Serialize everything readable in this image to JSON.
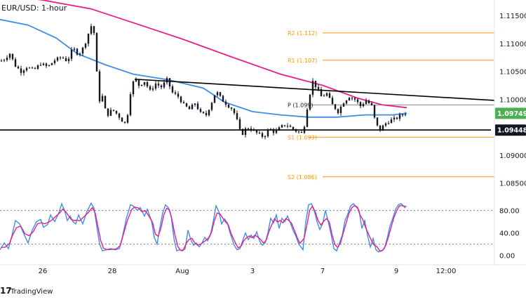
{
  "chart_data": {
    "type": "candlestick",
    "title": "EUR/USD: 1-hour",
    "x_ticks": [
      "26",
      "28",
      "Aug",
      "3",
      "7",
      "9",
      "12:00"
    ],
    "y_ticks": [
      "1.11500",
      "1.11000",
      "1.10500",
      "1.10000",
      "1.09000",
      "1.08500"
    ],
    "ylim": [
      1.0828,
      1.1178
    ],
    "price_path": [
      [
        0,
        1.1068
      ],
      [
        6,
        1.1072
      ],
      [
        14,
        1.1082
      ],
      [
        22,
        1.106
      ],
      [
        30,
        1.105
      ],
      [
        38,
        1.1058
      ],
      [
        48,
        1.1052
      ],
      [
        58,
        1.1064
      ],
      [
        68,
        1.1058
      ],
      [
        78,
        1.107
      ],
      [
        88,
        1.1076
      ],
      [
        96,
        1.1068
      ],
      [
        104,
        1.1092
      ],
      [
        112,
        1.108
      ],
      [
        120,
        1.1095
      ],
      [
        126,
        1.1118
      ],
      [
        132,
        1.1138
      ],
      [
        136,
        1.11
      ],
      [
        140,
        1.0995
      ],
      [
        146,
        1.1005
      ],
      [
        152,
        1.097
      ],
      [
        160,
        1.0982
      ],
      [
        168,
        1.0972
      ],
      [
        174,
        1.0962
      ],
      [
        180,
        1.0955
      ],
      [
        186,
        1.1012
      ],
      [
        192,
        1.104
      ],
      [
        198,
        1.1025
      ],
      [
        206,
        1.1032
      ],
      [
        214,
        1.1015
      ],
      [
        222,
        1.1028
      ],
      [
        230,
        1.1022
      ],
      [
        238,
        1.1035
      ],
      [
        246,
        1.1012
      ],
      [
        254,
        1.1005
      ],
      [
        262,
        1.099
      ],
      [
        270,
        1.0982
      ],
      [
        278,
        1.0993
      ],
      [
        286,
        1.0975
      ],
      [
        294,
        1.0972
      ],
      [
        302,
        1.0995
      ],
      [
        308,
        1.1015
      ],
      [
        316,
        1.1
      ],
      [
        324,
        1.099
      ],
      [
        332,
        1.0982
      ],
      [
        338,
        1.0962
      ],
      [
        344,
        1.0935
      ],
      [
        352,
        1.095
      ],
      [
        360,
        1.0945
      ],
      [
        368,
        1.0938
      ],
      [
        376,
        1.0932
      ],
      [
        384,
        1.0948
      ],
      [
        392,
        1.094
      ],
      [
        400,
        1.095
      ],
      [
        408,
        1.0955
      ],
      [
        416,
        1.0948
      ],
      [
        424,
        1.0942
      ],
      [
        432,
        1.0938
      ],
      [
        440,
        1.1
      ],
      [
        446,
        1.1032
      ],
      [
        452,
        1.102
      ],
      [
        458,
        1.1005
      ],
      [
        466,
        1.101
      ],
      [
        474,
        1.099
      ],
      [
        482,
        1.0978
      ],
      [
        490,
        1.0995
      ],
      [
        498,
        1.1005
      ],
      [
        506,
        1.1
      ],
      [
        514,
        1.0988
      ],
      [
        522,
        1.0998
      ],
      [
        530,
        1.0988
      ],
      [
        536,
        1.0955
      ],
      [
        542,
        1.0945
      ],
      [
        548,
        1.0955
      ],
      [
        556,
        1.0962
      ],
      [
        564,
        1.0965
      ],
      [
        572,
        1.0972
      ],
      [
        578,
        1.0975
      ]
    ],
    "moving_averages": [
      {
        "color": "#e91e8c",
        "points": [
          [
            0,
            1.1188
          ],
          [
            60,
            1.1178
          ],
          [
            130,
            1.1162
          ],
          [
            200,
            1.1133
          ],
          [
            260,
            1.1108
          ],
          [
            330,
            1.1076
          ],
          [
            400,
            1.1045
          ],
          [
            460,
            1.1025
          ],
          [
            510,
            1.1002
          ],
          [
            545,
            1.099
          ],
          [
            580,
            1.0985
          ]
        ]
      },
      {
        "color": "#3d8ee6",
        "points": [
          [
            0,
            1.1143
          ],
          [
            40,
            1.1133
          ],
          [
            80,
            1.111
          ],
          [
            110,
            1.1082
          ],
          [
            150,
            1.1062
          ],
          [
            190,
            1.1045
          ],
          [
            240,
            1.1035
          ],
          [
            290,
            1.102
          ],
          [
            320,
            1.0995
          ],
          [
            360,
            1.0978
          ],
          [
            400,
            1.0972
          ],
          [
            440,
            1.0968
          ],
          [
            480,
            1.0968
          ],
          [
            520,
            1.0972
          ],
          [
            560,
            1.0972
          ],
          [
            580,
            1.0975
          ]
        ]
      }
    ],
    "trendlines": [
      {
        "name": "descending-resistance",
        "points": [
          [
            192,
            1.1036
          ],
          [
            705,
            1.0998
          ]
        ],
        "color": "#000000"
      },
      {
        "name": "support",
        "points": [
          [
            0,
            1.0945
          ],
          [
            700,
            1.0945
          ]
        ],
        "color": "#000000"
      }
    ],
    "pivots": [
      {
        "label": "R2 (1.112)",
        "value": 1.1119,
        "start_x": 460,
        "color": "#ff9800"
      },
      {
        "label": "R1 (1.107)",
        "value": 1.107,
        "start_x": 460,
        "color": "#ff9800"
      },
      {
        "label": "P (1.099)",
        "value": 1.099,
        "start_x": 440,
        "color": "#131722"
      },
      {
        "label": "S1 (1.093)",
        "value": 1.0932,
        "start_x": 440,
        "color": "#ff9800"
      },
      {
        "label": "S2 (1.086)",
        "value": 1.0861,
        "start_x": 460,
        "color": "#ff9800"
      }
    ],
    "price_badges": [
      {
        "label": "1.09749",
        "value": 1.09749,
        "color": "#4caf50"
      },
      {
        "label": "1.09448",
        "value": 1.09448,
        "color": "#131722"
      }
    ],
    "oscillator": {
      "ylim": [
        -8,
        102
      ],
      "y_ticks": [
        "80.00",
        "40.00",
        "0.00"
      ],
      "levels": [
        80,
        20
      ],
      "k_color": "#3d8ee6",
      "d_color": "#e91e8c",
      "points": [
        [
          0,
          10
        ],
        [
          6,
          22
        ],
        [
          12,
          12
        ],
        [
          16,
          30
        ],
        [
          22,
          62
        ],
        [
          28,
          56
        ],
        [
          34,
          38
        ],
        [
          40,
          22
        ],
        [
          46,
          45
        ],
        [
          52,
          60
        ],
        [
          58,
          64
        ],
        [
          62,
          50
        ],
        [
          68,
          55
        ],
        [
          72,
          72
        ],
        [
          78,
          60
        ],
        [
          84,
          76
        ],
        [
          88,
          92
        ],
        [
          92,
          80
        ],
        [
          96,
          62
        ],
        [
          100,
          70
        ],
        [
          104,
          60
        ],
        [
          108,
          56
        ],
        [
          112,
          72
        ],
        [
          118,
          56
        ],
        [
          124,
          78
        ],
        [
          130,
          93
        ],
        [
          134,
          84
        ],
        [
          138,
          52
        ],
        [
          142,
          20
        ],
        [
          146,
          8
        ],
        [
          152,
          10
        ],
        [
          158,
          12
        ],
        [
          164,
          10
        ],
        [
          170,
          12
        ],
        [
          174,
          30
        ],
        [
          180,
          65
        ],
        [
          186,
          90
        ],
        [
          190,
          88
        ],
        [
          196,
          80
        ],
        [
          200,
          85
        ],
        [
          206,
          70
        ],
        [
          210,
          82
        ],
        [
          216,
          62
        ],
        [
          220,
          32
        ],
        [
          224,
          20
        ],
        [
          228,
          50
        ],
        [
          232,
          76
        ],
        [
          236,
          90
        ],
        [
          240,
          85
        ],
        [
          244,
          70
        ],
        [
          248,
          30
        ],
        [
          252,
          8
        ],
        [
          256,
          10
        ],
        [
          260,
          8
        ],
        [
          264,
          12
        ],
        [
          268,
          45
        ],
        [
          272,
          28
        ],
        [
          276,
          18
        ],
        [
          280,
          22
        ],
        [
          284,
          15
        ],
        [
          288,
          22
        ],
        [
          292,
          32
        ],
        [
          296,
          26
        ],
        [
          300,
          36
        ],
        [
          304,
          60
        ],
        [
          308,
          88
        ],
        [
          312,
          78
        ],
        [
          316,
          56
        ],
        [
          320,
          65
        ],
        [
          324,
          58
        ],
        [
          328,
          40
        ],
        [
          334,
          18
        ],
        [
          338,
          10
        ],
        [
          342,
          12
        ],
        [
          346,
          26
        ],
        [
          350,
          40
        ],
        [
          354,
          28
        ],
        [
          358,
          36
        ],
        [
          362,
          30
        ],
        [
          366,
          42
        ],
        [
          370,
          26
        ],
        [
          374,
          18
        ],
        [
          378,
          22
        ],
        [
          382,
          40
        ],
        [
          386,
          66
        ],
        [
          390,
          58
        ],
        [
          394,
          72
        ],
        [
          398,
          48
        ],
        [
          402,
          66
        ],
        [
          406,
          60
        ],
        [
          410,
          70
        ],
        [
          414,
          58
        ],
        [
          418,
          44
        ],
        [
          422,
          34
        ],
        [
          426,
          20
        ],
        [
          432,
          10
        ],
        [
          436,
          60
        ],
        [
          440,
          90
        ],
        [
          444,
          92
        ],
        [
          448,
          80
        ],
        [
          452,
          60
        ],
        [
          456,
          46
        ],
        [
          460,
          56
        ],
        [
          464,
          80
        ],
        [
          468,
          60
        ],
        [
          472,
          38
        ],
        [
          476,
          12
        ],
        [
          480,
          8
        ],
        [
          484,
          22
        ],
        [
          488,
          36
        ],
        [
          492,
          62
        ],
        [
          496,
          74
        ],
        [
          500,
          88
        ],
        [
          504,
          92
        ],
        [
          508,
          86
        ],
        [
          512,
          80
        ],
        [
          516,
          48
        ],
        [
          520,
          62
        ],
        [
          524,
          36
        ],
        [
          528,
          15
        ],
        [
          532,
          30
        ],
        [
          536,
          10
        ],
        [
          540,
          6
        ],
        [
          544,
          8
        ],
        [
          548,
          12
        ],
        [
          552,
          30
        ],
        [
          556,
          52
        ],
        [
          560,
          66
        ],
        [
          564,
          82
        ],
        [
          568,
          90
        ],
        [
          572,
          92
        ],
        [
          578,
          84
        ]
      ]
    }
  },
  "branding": {
    "logo_text": "TradingView"
  }
}
